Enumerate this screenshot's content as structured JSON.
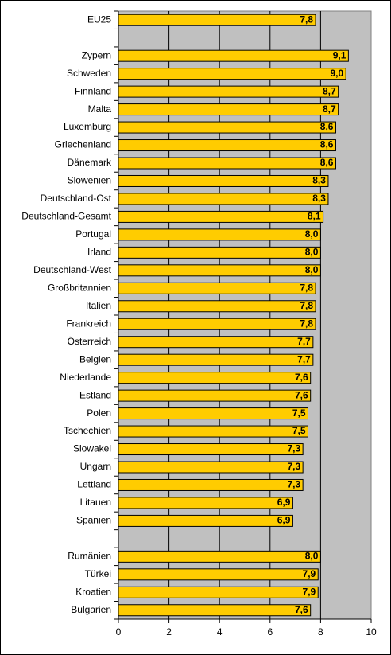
{
  "chart_data": {
    "type": "hbar",
    "categories": [
      "EU25",
      null,
      "Zypern",
      "Schweden",
      "Finnland",
      "Malta",
      "Luxemburg",
      "Griechenland",
      "Dänemark",
      "Slowenien",
      "Deutschland-Ost",
      "Deutschland-Gesamt",
      "Portugal",
      "Irland",
      "Deutschland-West",
      "Großbritannien",
      "Italien",
      "Frankreich",
      "Österreich",
      "Belgien",
      "Niederlande",
      "Estland",
      "Polen",
      "Tschechien",
      "Slowakei",
      "Ungarn",
      "Lettland",
      "Litauen",
      "Spanien",
      null,
      "Rumänien",
      "Türkei",
      "Kroatien",
      "Bulgarien"
    ],
    "values": [
      7.8,
      null,
      9.1,
      9.0,
      8.7,
      8.7,
      8.6,
      8.6,
      8.6,
      8.3,
      8.3,
      8.1,
      8.0,
      8.0,
      8.0,
      7.8,
      7.8,
      7.8,
      7.7,
      7.7,
      7.6,
      7.6,
      7.5,
      7.5,
      7.3,
      7.3,
      7.3,
      6.9,
      6.9,
      null,
      8.0,
      7.9,
      7.9,
      7.6
    ],
    "value_labels": [
      "7,8",
      null,
      "9,1",
      "9,0",
      "8,7",
      "8,7",
      "8,6",
      "8,6",
      "8,6",
      "8,3",
      "8,3",
      "8,1",
      "8,0",
      "8,0",
      "8,0",
      "7,8",
      "7,8",
      "7,8",
      "7,7",
      "7,7",
      "7,6",
      "7,6",
      "7,5",
      "7,5",
      "7,3",
      "7,3",
      "7,3",
      "6,9",
      "6,9",
      null,
      "8,0",
      "7,9",
      "7,9",
      "7,6"
    ],
    "color": "#ffcc00",
    "xlim": [
      0,
      10
    ],
    "xticks": [
      0,
      2,
      4,
      6,
      8,
      10
    ],
    "grid": true
  }
}
